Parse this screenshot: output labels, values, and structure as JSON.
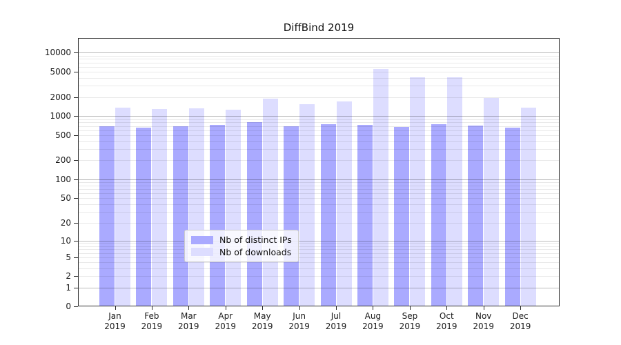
{
  "title": "DiffBind 2019",
  "legend": {
    "items": [
      {
        "label": "Nb of distinct IPs",
        "color": "#aaaaff"
      },
      {
        "label": "Nb of downloads",
        "color": "#ddddff"
      }
    ]
  },
  "chart_data": {
    "type": "bar",
    "title": "DiffBind 2019",
    "categories": [
      "Jan 2019",
      "Feb 2019",
      "Mar 2019",
      "Apr 2019",
      "May 2019",
      "Jun 2019",
      "Jul 2019",
      "Aug 2019",
      "Sep 2019",
      "Oct 2019",
      "Nov 2019",
      "Dec 2019"
    ],
    "series": [
      {
        "name": "Nb of distinct IPs",
        "color": "#aaaaff",
        "values": [
          700,
          660,
          690,
          730,
          810,
          700,
          750,
          730,
          680,
          740,
          710,
          660
        ]
      },
      {
        "name": "Nb of downloads",
        "color": "#ddddff",
        "values": [
          1360,
          1290,
          1340,
          1250,
          1900,
          1550,
          1690,
          5500,
          4100,
          4100,
          1950,
          1350
        ]
      }
    ],
    "xlabel": "",
    "ylabel": "",
    "yscale": "log10(value+1)",
    "yticks": [
      0,
      1,
      2,
      5,
      10,
      20,
      50,
      100,
      200,
      500,
      1000,
      2000,
      5000,
      10000
    ],
    "ylim": [
      0,
      16500
    ],
    "grid": "horizontal",
    "legend_position": "lower-center"
  }
}
